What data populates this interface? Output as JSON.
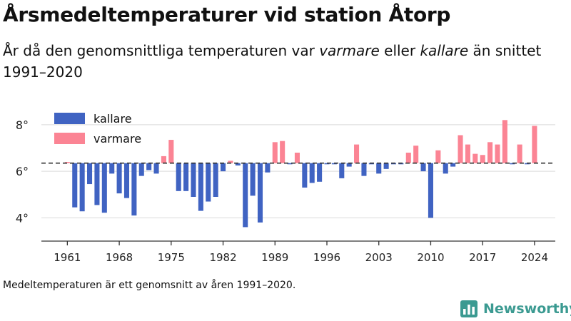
{
  "title": "Årsmedeltemperaturer vid station Åtorp",
  "subtitle": {
    "prefix": "År då den genomsnittliga temperaturen var ",
    "warm_word": "varmare",
    "middle": " eller ",
    "cold_word": "kallare",
    "suffix": " än snittet 1991–2020"
  },
  "footnote": "Medeltemperaturen är ett genomsnitt av åren 1991–2020.",
  "brand": {
    "name": "Newsworthy",
    "logo_icon": "newsworthy-bar-chart-icon",
    "color": "#3b9a91"
  },
  "colors": {
    "kallare": "#4063c2",
    "varmare": "#fb8494",
    "axis": "#333333",
    "grid": "#d9d9d9"
  },
  "chart_data": {
    "type": "bar",
    "baseline": 6.35,
    "baseline_style": "dashed",
    "ylim": [
      3.0,
      8.7
    ],
    "yticks": [
      4,
      6,
      8
    ],
    "ytick_labels": [
      "4°",
      "6°",
      "8°"
    ],
    "xlim": [
      1957.5,
      2026.8
    ],
    "xticks": [
      1961,
      1968,
      1975,
      1982,
      1989,
      1996,
      2003,
      2010,
      2017,
      2024
    ],
    "xtick_labels": [
      "1961",
      "1968",
      "1975",
      "1982",
      "1989",
      "1996",
      "2003",
      "2010",
      "2017",
      "2024"
    ],
    "legend": [
      {
        "key": "kallare",
        "label": "kallare"
      },
      {
        "key": "varmare",
        "label": "varmare"
      }
    ],
    "legend_position": "top-left",
    "grid": true,
    "years": [
      1961,
      1962,
      1963,
      1964,
      1965,
      1966,
      1967,
      1968,
      1969,
      1970,
      1971,
      1972,
      1973,
      1974,
      1975,
      1976,
      1977,
      1978,
      1979,
      1980,
      1981,
      1982,
      1983,
      1984,
      1985,
      1986,
      1987,
      1988,
      1989,
      1990,
      1991,
      1992,
      1993,
      1994,
      1995,
      1996,
      1997,
      1998,
      1999,
      2000,
      2001,
      2002,
      2003,
      2004,
      2005,
      2006,
      2007,
      2008,
      2009,
      2010,
      2011,
      2012,
      2013,
      2014,
      2015,
      2016,
      2017,
      2018,
      2019,
      2020,
      2021,
      2022,
      2023,
      2024
    ],
    "values": [
      6.38,
      4.45,
      4.28,
      5.45,
      4.55,
      4.22,
      5.9,
      5.05,
      4.85,
      4.1,
      5.8,
      6.05,
      5.9,
      6.65,
      7.35,
      5.15,
      5.15,
      4.9,
      4.3,
      4.7,
      4.9,
      6.0,
      6.45,
      6.25,
      3.6,
      4.95,
      3.8,
      5.95,
      7.25,
      7.3,
      6.3,
      6.8,
      5.3,
      5.5,
      5.55,
      6.3,
      6.3,
      5.7,
      6.2,
      7.15,
      5.8,
      6.3,
      5.9,
      6.1,
      6.3,
      6.3,
      6.8,
      7.1,
      6.0,
      4.0,
      6.9,
      5.9,
      6.2,
      7.55,
      7.15,
      6.75,
      6.7,
      7.25,
      7.15,
      8.2,
      6.3,
      7.15,
      6.3,
      7.95
    ]
  }
}
